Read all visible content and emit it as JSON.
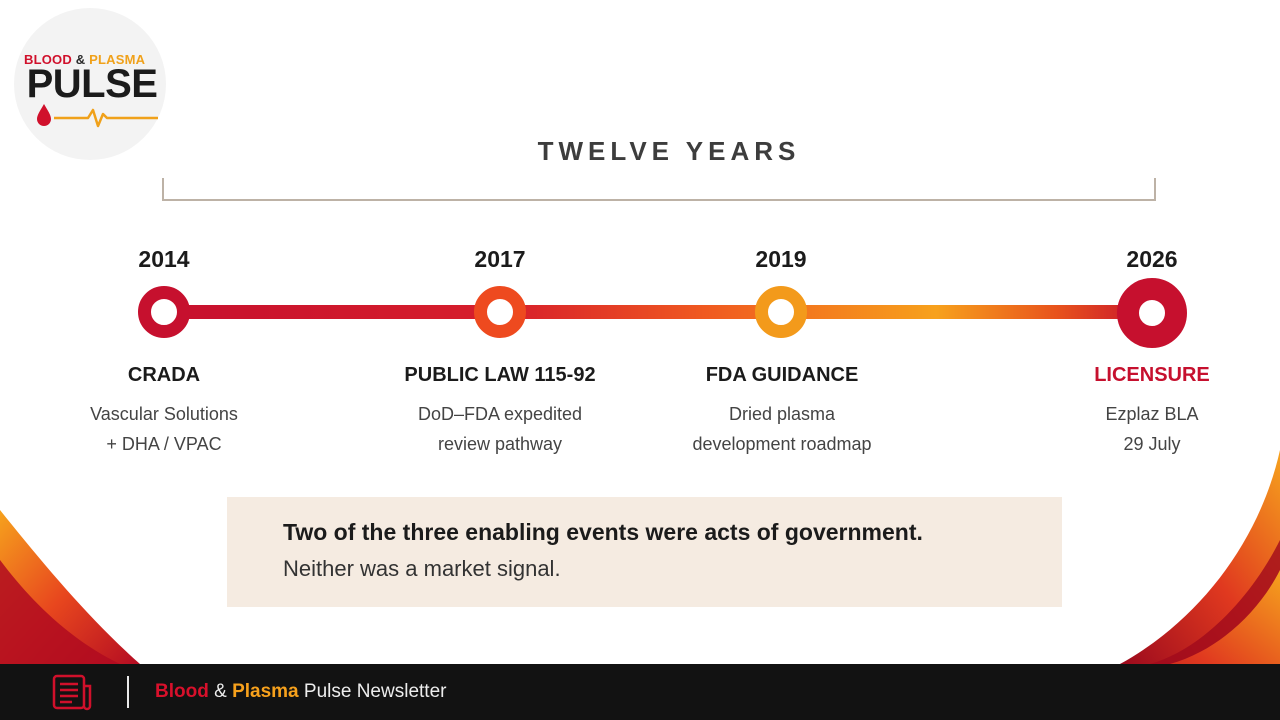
{
  "brand": {
    "logo_word1": "BLOOD",
    "logo_amp": "&",
    "logo_word2": "PLASMA",
    "logo_main": "PULSE",
    "logo_mark_icons": [
      "blood-drop-icon",
      "heartbeat-line-icon"
    ]
  },
  "span_label": "TWELVE YEARS",
  "timeline": [
    {
      "year": "2014",
      "title": "CRADA",
      "desc_lines": [
        "Vascular Solutions",
        "+ DHA / VPAC"
      ],
      "node_color": "#c6102e",
      "accent": false
    },
    {
      "year": "2017",
      "title": "PUBLIC LAW 115-92",
      "desc_lines": [
        "DoD–FDA expedited",
        "review pathway"
      ],
      "node_color": "#ee4a1f",
      "accent": false
    },
    {
      "year": "2019",
      "title": "FDA GUIDANCE",
      "desc_lines": [
        "Dried plasma",
        "development roadmap"
      ],
      "node_color": "#f39a1b",
      "accent": false
    },
    {
      "year": "2026",
      "title": "LICENSURE",
      "desc_lines": [
        "Ezplaz BLA",
        "29 July"
      ],
      "node_color": "#c6102e",
      "accent": true
    }
  ],
  "callout": {
    "bold": "Two of the three enabling events were acts of government.",
    "text": "Neither was a market signal."
  },
  "footer": {
    "icon": "newsletter-document-icon",
    "word1": "Blood",
    "amp": "&",
    "word2": "Plasma",
    "rest": "Pulse Newsletter"
  },
  "colors": {
    "brand_red": "#c6102e",
    "brand_orange": "#f7a11c",
    "callout_bg": "#f5ebe1",
    "footer_bg": "#121212"
  }
}
